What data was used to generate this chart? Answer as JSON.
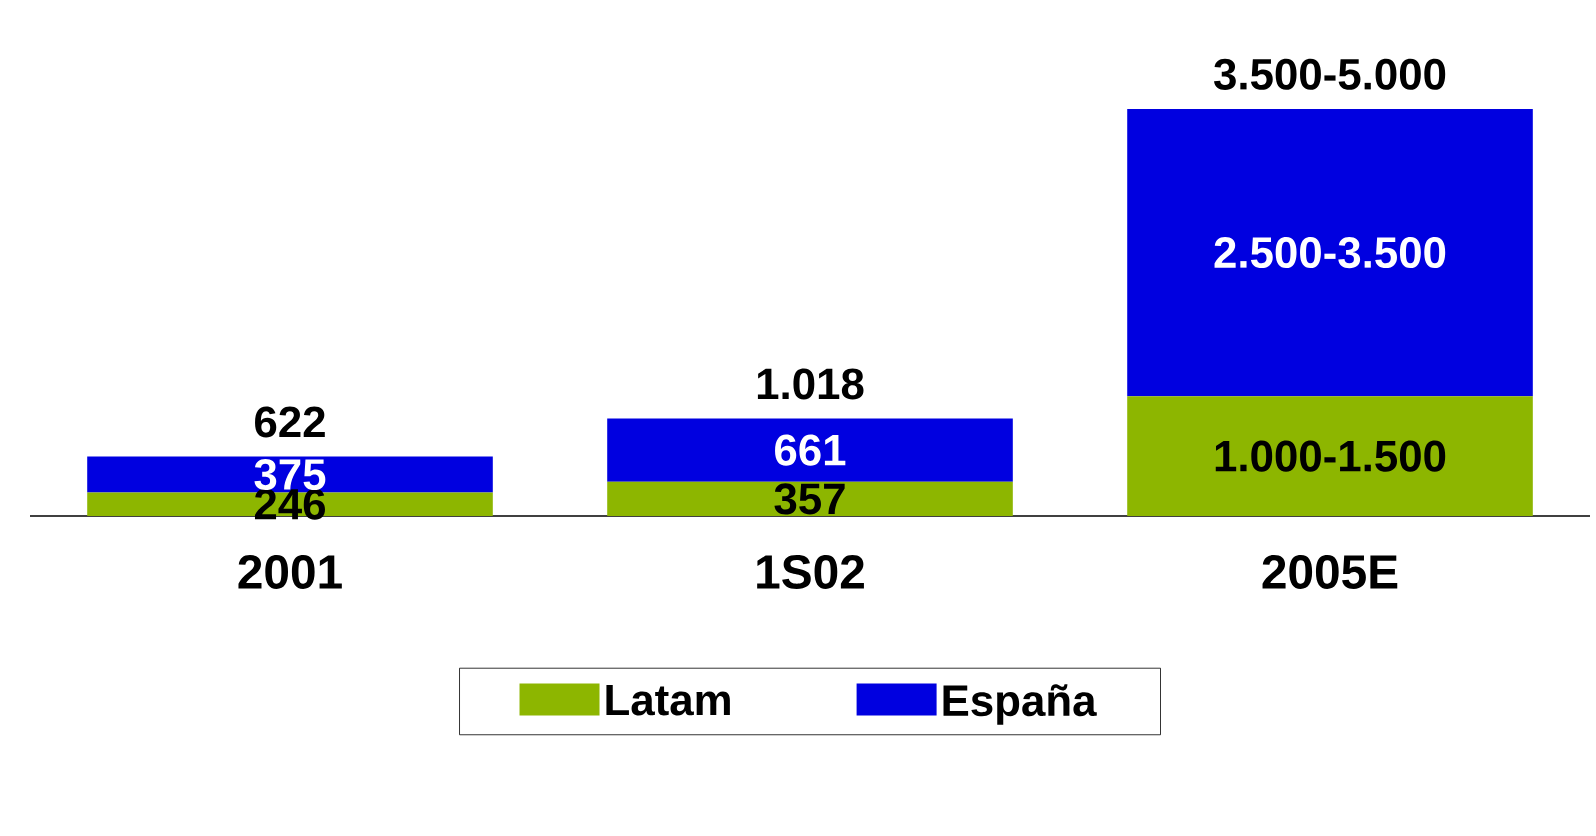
{
  "chart_data": {
    "type": "bar",
    "stacked": true,
    "categories": [
      "2001",
      "1S02",
      "2005E"
    ],
    "series": [
      {
        "name": "Latam",
        "color": "#8db600",
        "values": [
          246,
          357,
          1250
        ],
        "value_labels": [
          "246",
          "357",
          "1.000-1.500"
        ]
      },
      {
        "name": "España",
        "color": "#0000e0",
        "values": [
          375,
          661,
          3000
        ],
        "value_labels": [
          "375",
          "661",
          "2.500-3.500"
        ]
      }
    ],
    "totals": [
      "622",
      "1.018",
      "3.500-5.000"
    ],
    "legend": "bottom"
  }
}
